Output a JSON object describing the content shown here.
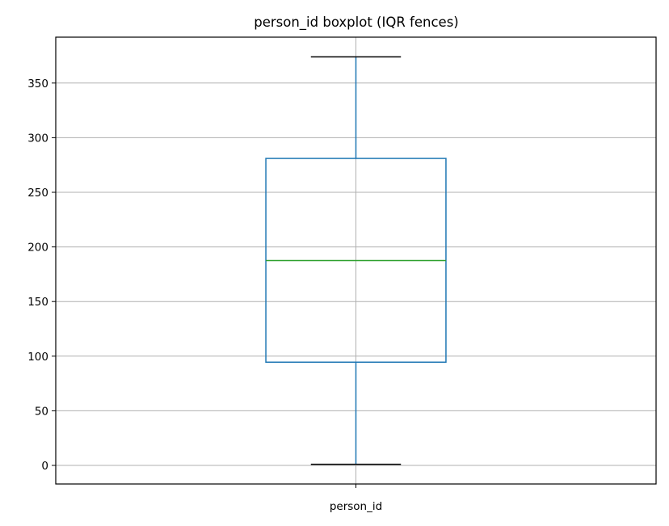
{
  "chart_data": {
    "type": "box",
    "title": "person_id boxplot (IQR fences)",
    "xlabel": "",
    "ylabel": "",
    "categories": [
      "person_id"
    ],
    "boxes": [
      {
        "label": "person_id",
        "min": 1,
        "q1": 94.5,
        "median": 187.5,
        "q3": 281,
        "max": 374
      }
    ],
    "ylim": [
      -17,
      392
    ],
    "yticks": [
      0,
      50,
      100,
      150,
      200,
      250,
      300,
      350
    ],
    "grid": true,
    "colors": {
      "box": "#1f77b4",
      "median": "#2ca02c",
      "caps": "#000000",
      "grid": "#b0b0b0"
    }
  }
}
